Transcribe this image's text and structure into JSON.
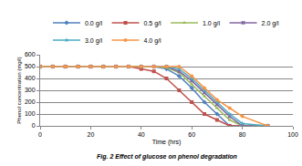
{
  "chart_data": {
    "type": "line",
    "title": "Fig. 2 Effect of glucose on phenol degradation",
    "x_label": "Time (hrs)",
    "y_label": "Phenol concentration (mg/l)",
    "x": [
      0,
      5,
      10,
      15,
      20,
      25,
      30,
      35,
      40,
      45,
      50,
      55,
      60,
      65,
      70,
      75,
      80,
      90
    ],
    "series": [
      {
        "name": "0.0 g/l",
        "color": "#4F81BD",
        "marker": "diamond",
        "values": [
          500,
          500,
          500,
          500,
          500,
          500,
          500,
          500,
          500,
          500,
          480,
          420,
          320,
          200,
          100,
          0,
          0,
          0
        ]
      },
      {
        "name": "0.5 g/l",
        "color": "#C0504D",
        "marker": "square",
        "values": [
          500,
          500,
          500,
          500,
          500,
          500,
          500,
          500,
          480,
          460,
          400,
          300,
          200,
          100,
          50,
          0,
          0,
          0
        ]
      },
      {
        "name": "1.0 g/l",
        "color": "#9BBB59",
        "marker": "triangle-up",
        "values": [
          500,
          500,
          500,
          500,
          500,
          500,
          500,
          500,
          500,
          500,
          490,
          450,
          350,
          250,
          150,
          50,
          0,
          0
        ]
      },
      {
        "name": "2.0 g/l",
        "color": "#8064A2",
        "marker": "x",
        "values": [
          500,
          500,
          500,
          500,
          500,
          500,
          500,
          500,
          500,
          500,
          500,
          460,
          380,
          280,
          180,
          80,
          0,
          0
        ]
      },
      {
        "name": "3.0 g/l",
        "color": "#4BACC6",
        "marker": "star",
        "values": [
          500,
          500,
          500,
          500,
          500,
          500,
          500,
          500,
          500,
          500,
          500,
          480,
          400,
          300,
          200,
          100,
          20,
          0
        ]
      },
      {
        "name": "4.0 g/l",
        "color": "#F79646",
        "marker": "circle",
        "values": [
          500,
          500,
          500,
          500,
          500,
          500,
          500,
          500,
          500,
          500,
          500,
          500,
          420,
          320,
          220,
          150,
          80,
          0
        ]
      }
    ],
    "xlim": [
      0,
      100
    ],
    "xticks": [
      0,
      20,
      40,
      60,
      80,
      100
    ],
    "ylim": [
      0,
      600
    ],
    "yticks": [
      0,
      100,
      200,
      300,
      400,
      500,
      600
    ],
    "grid": true,
    "legend": "top"
  }
}
